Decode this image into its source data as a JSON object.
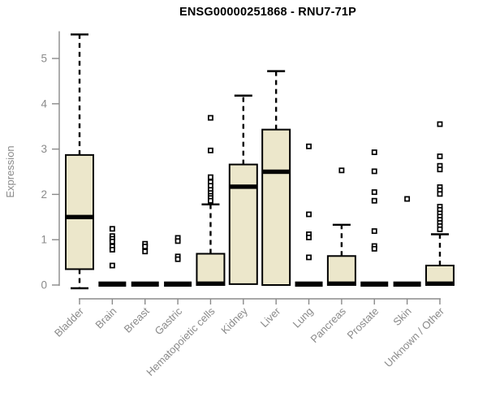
{
  "colors": {
    "background": "#ffffff",
    "title": "#000000",
    "axis": "#8a8a8a",
    "label": "#8a8a8a",
    "box_fill": "#ece7cb",
    "box_stroke": "#000000",
    "outlier_fill": "#ffffff",
    "outlier_stroke": "#000000"
  },
  "chart_data": {
    "type": "boxplot",
    "title": "ENSG00000251868 - RNU7-71P",
    "xlabel": "",
    "ylabel": "Expression",
    "ylim": [
      0,
      5.6
    ],
    "yticks": [
      0,
      1,
      2,
      3,
      4,
      5
    ],
    "grid": false,
    "legend": "none",
    "categories": [
      "Bladder",
      "Brain",
      "Breast",
      "Gastric",
      "Hematopoietic cells",
      "Kidney",
      "Liver",
      "Lung",
      "Pancreas",
      "Prostate",
      "Skin",
      "Unknown / Other"
    ],
    "boxes": [
      {
        "category": "Bladder",
        "whisker_low": 0,
        "q1": 0.35,
        "median": 1.5,
        "q3": 2.87,
        "whisker_high": 5.53,
        "outliers": []
      },
      {
        "category": "Brain",
        "whisker_low": 0,
        "q1": 0,
        "median": 0.02,
        "q3": 0.02,
        "whisker_high": 0.02,
        "outliers": [
          1.24,
          1.08,
          1.02,
          0.96,
          0.85,
          0.78,
          0.43
        ]
      },
      {
        "category": "Breast",
        "whisker_low": 0,
        "q1": 0,
        "median": 0.02,
        "q3": 0.02,
        "whisker_high": 0.02,
        "outliers": [
          0.91,
          0.85,
          0.74
        ]
      },
      {
        "category": "Gastric",
        "whisker_low": 0,
        "q1": 0,
        "median": 0.02,
        "q3": 0.02,
        "whisker_high": 0.02,
        "outliers": [
          1.04,
          0.97,
          0.63,
          0.57
        ]
      },
      {
        "category": "Hematopoietic cells",
        "whisker_low": 0,
        "q1": 0,
        "median": 0.03,
        "q3": 0.69,
        "whisker_high": 1.78,
        "outliers": [
          3.69,
          2.97,
          2.38,
          2.27,
          2.19,
          2.1,
          2.03,
          1.97,
          1.92,
          1.86
        ]
      },
      {
        "category": "Kidney",
        "whisker_low": 0,
        "q1": 0.02,
        "median": 2.17,
        "q3": 2.66,
        "whisker_high": 4.18,
        "outliers": []
      },
      {
        "category": "Liver",
        "whisker_low": 0,
        "q1": 0,
        "median": 2.5,
        "q3": 3.43,
        "whisker_high": 4.72,
        "outliers": []
      },
      {
        "category": "Lung",
        "whisker_low": 0,
        "q1": 0,
        "median": 0.02,
        "q3": 0.02,
        "whisker_high": 0.02,
        "outliers": [
          3.06,
          1.56,
          1.12,
          1.05,
          0.61
        ]
      },
      {
        "category": "Pancreas",
        "whisker_low": 0,
        "q1": 0,
        "median": 0.03,
        "q3": 0.64,
        "whisker_high": 1.33,
        "outliers": [
          2.53
        ]
      },
      {
        "category": "Prostate",
        "whisker_low": 0,
        "q1": 0,
        "median": 0.02,
        "q3": 0.02,
        "whisker_high": 0.02,
        "outliers": [
          2.93,
          2.51,
          2.05,
          1.86,
          1.19,
          0.86,
          0.8
        ]
      },
      {
        "category": "Skin",
        "whisker_low": 0,
        "q1": 0,
        "median": 0.02,
        "q3": 0.02,
        "whisker_high": 0.02,
        "outliers": [
          1.9
        ]
      },
      {
        "category": "Unknown / Other",
        "whisker_low": 0,
        "q1": 0,
        "median": 0.03,
        "q3": 0.43,
        "whisker_high": 1.12,
        "outliers": [
          3.55,
          2.84,
          2.63,
          2.55,
          2.16,
          2.09,
          2.01,
          1.73,
          1.66,
          1.58,
          1.51,
          1.44,
          1.37,
          1.3,
          1.23
        ]
      }
    ]
  }
}
